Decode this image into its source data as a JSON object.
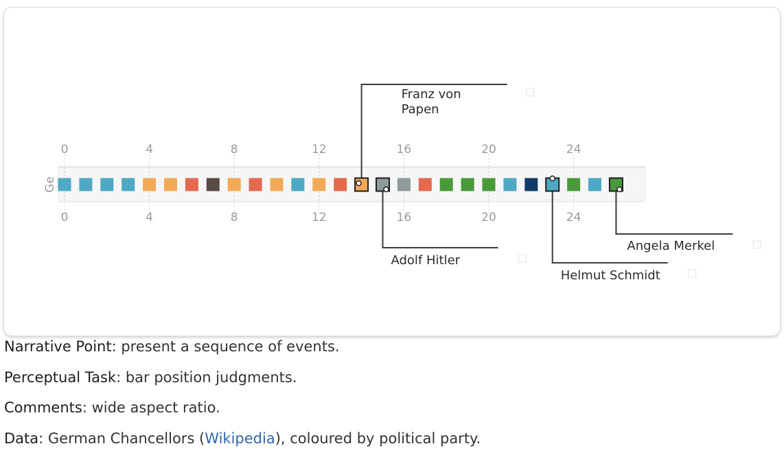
{
  "chart_data": {
    "type": "scatter",
    "row_label": "Ge",
    "x_ticks": [
      "0",
      "4",
      "8",
      "12",
      "16",
      "20",
      "24"
    ],
    "xlim": [
      0,
      27
    ],
    "colors": {
      "teal": "#4fa8c4",
      "orange": "#f2a957",
      "red": "#e36a4f",
      "darkbrown": "#5a4a44",
      "gray": "#8e9a9c",
      "green": "#4a9a3c",
      "navy": "#0f3c69"
    },
    "squares": [
      {
        "x": 0,
        "color": "teal"
      },
      {
        "x": 1,
        "color": "teal"
      },
      {
        "x": 2,
        "color": "teal"
      },
      {
        "x": 3,
        "color": "teal"
      },
      {
        "x": 4,
        "color": "orange"
      },
      {
        "x": 5,
        "color": "orange"
      },
      {
        "x": 6,
        "color": "red"
      },
      {
        "x": 7,
        "color": "darkbrown"
      },
      {
        "x": 8,
        "color": "orange"
      },
      {
        "x": 9,
        "color": "red"
      },
      {
        "x": 10,
        "color": "orange"
      },
      {
        "x": 11,
        "color": "teal"
      },
      {
        "x": 12,
        "color": "orange"
      },
      {
        "x": 13,
        "color": "red"
      },
      {
        "x": 14,
        "color": "orange",
        "highlight": true
      },
      {
        "x": 15,
        "color": "gray",
        "highlight": true
      },
      {
        "x": 16,
        "color": "gray"
      },
      {
        "x": 17,
        "color": "red"
      },
      {
        "x": 18,
        "color": "green"
      },
      {
        "x": 19,
        "color": "green"
      },
      {
        "x": 20,
        "color": "green"
      },
      {
        "x": 21,
        "color": "teal"
      },
      {
        "x": 22,
        "color": "navy"
      },
      {
        "x": 23,
        "color": "teal",
        "highlight": true
      },
      {
        "x": 24,
        "color": "green"
      },
      {
        "x": 25,
        "color": "teal"
      },
      {
        "x": 26,
        "color": "green",
        "highlight": true
      }
    ],
    "annotations": [
      {
        "x": 14,
        "label": "Franz von Papen",
        "side": "top"
      },
      {
        "x": 15,
        "label": "Adolf Hitler",
        "side": "bottom"
      },
      {
        "x": 23,
        "label": "Helmut Schmidt",
        "side": "bottom"
      },
      {
        "x": 26,
        "label": "Angela Merkel",
        "side": "bottom"
      }
    ]
  },
  "notes": [
    {
      "term": "Narrative Point",
      "text": ": present a sequence of events."
    },
    {
      "term": "Perceptual Task",
      "text": ": bar position judgments."
    },
    {
      "term": "Comments",
      "text": ": wide aspect ratio."
    }
  ],
  "data_note": {
    "term": "Data",
    "before": ": German Chancellors (",
    "link": "Wikipedia",
    "after": "), coloured by political party."
  }
}
